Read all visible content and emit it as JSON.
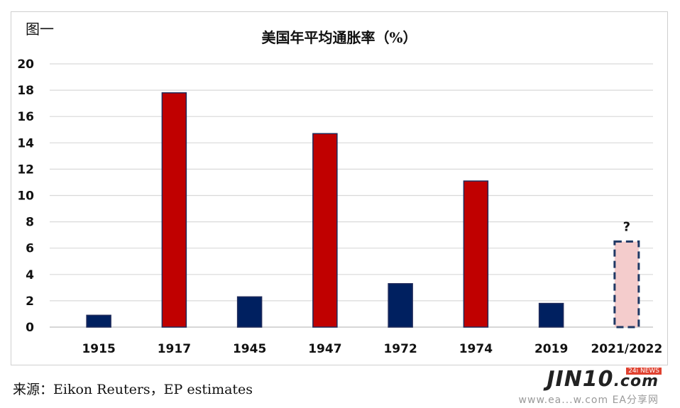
{
  "figure_label": "图一",
  "source_note": "来源：Eikon Reuters，EP estimates",
  "watermark": {
    "brand": "JIN10",
    "domain_suffix": ".com",
    "badge": "NEWS",
    "badge_prefix": "24i",
    "site": "www.ea...w.com  EA分享网"
  },
  "chart_data": {
    "type": "bar",
    "title": "美国年平均通胀率（%）",
    "xlabel": "",
    "ylabel": "",
    "ylim": [
      0,
      20
    ],
    "yticks": [
      0,
      2,
      4,
      6,
      8,
      10,
      12,
      14,
      16,
      18,
      20
    ],
    "grid": true,
    "legend": "none",
    "categories": [
      "1915",
      "1917",
      "1945",
      "1947",
      "1972",
      "1974",
      "2019",
      "2021/2022"
    ],
    "values": [
      0.9,
      17.8,
      2.3,
      14.7,
      3.3,
      11.1,
      1.8,
      6.5
    ],
    "bar_colors": [
      "#002060",
      "#c00000",
      "#002060",
      "#c00000",
      "#002060",
      "#c00000",
      "#002060",
      "#f4cccc"
    ],
    "bar_styles": [
      "solid",
      "solid",
      "solid",
      "solid",
      "solid",
      "solid",
      "solid",
      "dashed"
    ],
    "annotations": [
      {
        "category": "2021/2022",
        "text": "?"
      }
    ],
    "colors": {
      "low": "#002060",
      "high": "#c00000",
      "estimate_fill": "#f4cccc",
      "estimate_border": "#1f3864",
      "grid": "#d9d9d9"
    }
  }
}
